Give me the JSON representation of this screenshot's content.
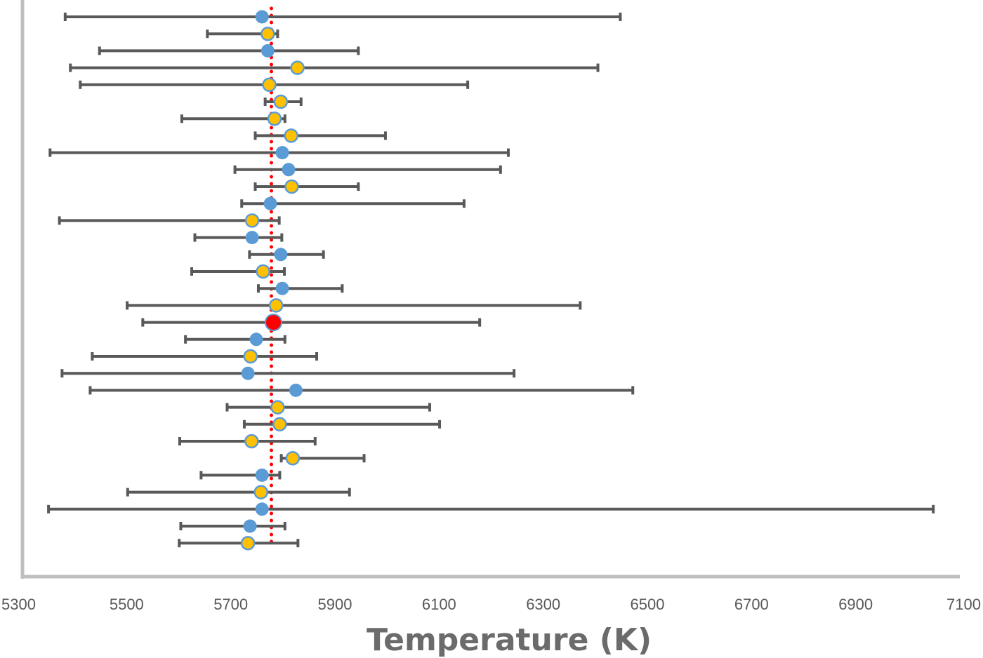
{
  "chart_data": {
    "type": "scatter",
    "title": "",
    "xlabel": "Temperature (K)",
    "ylabel": "",
    "xlim": [
      5300,
      7100
    ],
    "x_ticks": [
      5300,
      5500,
      5700,
      5900,
      6100,
      6300,
      6500,
      6700,
      6900,
      7100
    ],
    "reference_line": {
      "x": 5778,
      "style": "dotted",
      "color": "#ff0000"
    },
    "colors": {
      "blue": "#5b9bd5",
      "gold": "#ffc000",
      "red": "#ff0000",
      "errorbar": "#595959",
      "axis": "#bfbfbf"
    },
    "points": [
      {
        "x": 5760,
        "lo": 5382,
        "hi": 6448,
        "style": "blue"
      },
      {
        "x": 5771,
        "lo": 5655,
        "hi": 5790,
        "style": "gold"
      },
      {
        "x": 5771,
        "lo": 5448,
        "hi": 5945,
        "style": "blue"
      },
      {
        "x": 5828,
        "lo": 5392,
        "hi": 6405,
        "style": "gold"
      },
      {
        "x": 5774,
        "lo": 5411,
        "hi": 6155,
        "style": "gold"
      },
      {
        "x": 5796,
        "lo": 5766,
        "hi": 5835,
        "style": "gold"
      },
      {
        "x": 5784,
        "lo": 5606,
        "hi": 5804,
        "style": "gold"
      },
      {
        "x": 5816,
        "lo": 5747,
        "hi": 5997,
        "style": "gold"
      },
      {
        "x": 5799,
        "lo": 5353,
        "hi": 6233,
        "style": "blue"
      },
      {
        "x": 5811,
        "lo": 5708,
        "hi": 6218,
        "style": "blue"
      },
      {
        "x": 5817,
        "lo": 5747,
        "hi": 5945,
        "style": "gold"
      },
      {
        "x": 5776,
        "lo": 5721,
        "hi": 6148,
        "style": "blue"
      },
      {
        "x": 5741,
        "lo": 5371,
        "hi": 5793,
        "style": "gold"
      },
      {
        "x": 5741,
        "lo": 5631,
        "hi": 5798,
        "style": "blue"
      },
      {
        "x": 5796,
        "lo": 5736,
        "hi": 5878,
        "style": "blue"
      },
      {
        "x": 5762,
        "lo": 5625,
        "hi": 5803,
        "style": "gold"
      },
      {
        "x": 5799,
        "lo": 5753,
        "hi": 5914,
        "style": "blue"
      },
      {
        "x": 5787,
        "lo": 5501,
        "hi": 6371,
        "style": "gold"
      },
      {
        "x": 5782,
        "lo": 5531,
        "hi": 6178,
        "style": "red"
      },
      {
        "x": 5749,
        "lo": 5613,
        "hi": 5804,
        "style": "blue"
      },
      {
        "x": 5738,
        "lo": 5434,
        "hi": 5865,
        "style": "gold"
      },
      {
        "x": 5733,
        "lo": 5376,
        "hi": 6244,
        "style": "blue"
      },
      {
        "x": 5825,
        "lo": 5430,
        "hi": 6472,
        "style": "blue"
      },
      {
        "x": 5790,
        "lo": 5693,
        "hi": 6082,
        "style": "gold"
      },
      {
        "x": 5794,
        "lo": 5726,
        "hi": 6101,
        "style": "gold"
      },
      {
        "x": 5740,
        "lo": 5602,
        "hi": 5862,
        "style": "gold"
      },
      {
        "x": 5819,
        "lo": 5797,
        "hi": 5956,
        "style": "gold"
      },
      {
        "x": 5760,
        "lo": 5643,
        "hi": 5794,
        "style": "blue"
      },
      {
        "x": 5758,
        "lo": 5502,
        "hi": 5928,
        "style": "gold"
      },
      {
        "x": 5760,
        "lo": 5350,
        "hi": 7049,
        "style": "blue"
      },
      {
        "x": 5737,
        "lo": 5604,
        "hi": 5804,
        "style": "blue"
      },
      {
        "x": 5733,
        "lo": 5601,
        "hi": 5829,
        "style": "gold"
      }
    ]
  }
}
